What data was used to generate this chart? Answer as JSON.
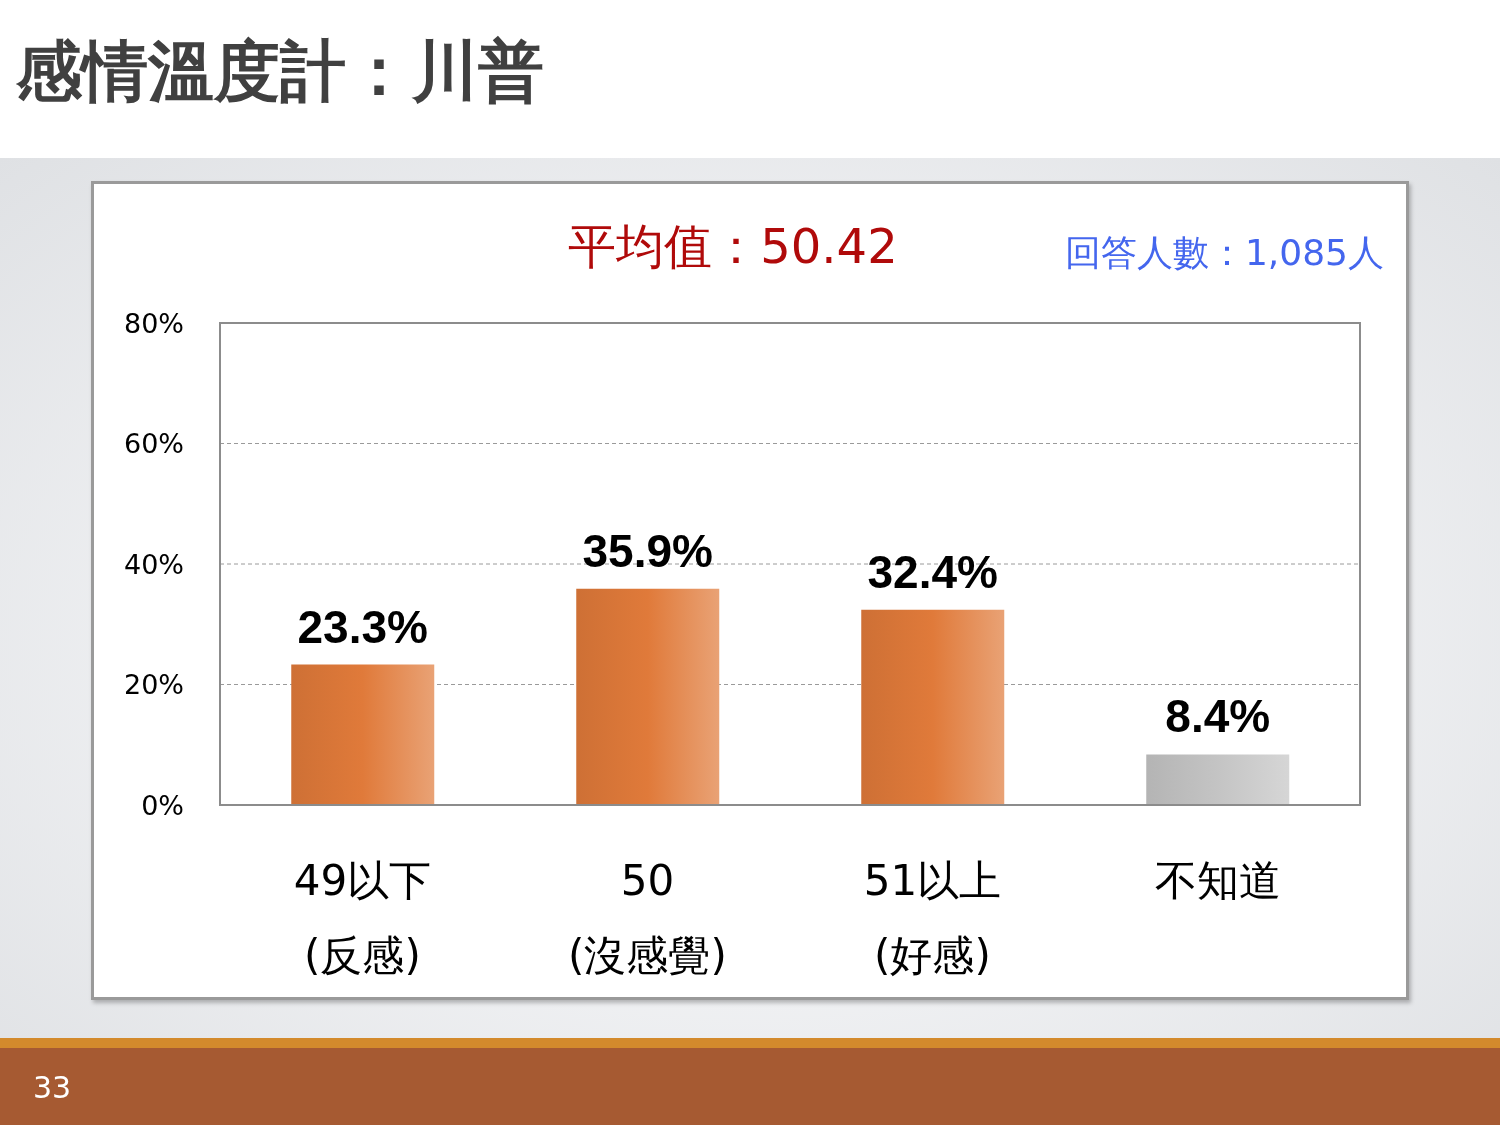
{
  "chart_data": {
    "type": "bar",
    "title": "感情溫度計：川普",
    "annotations": [
      "平均值：50.42",
      "回答人數：1,085人",
      "33"
    ],
    "categories": [
      "49以下\n(反感)",
      "50\n(沒感覺)",
      "51以上\n(好感)",
      "不知道"
    ],
    "values": [
      23.3,
      35.9,
      32.4,
      8.4
    ],
    "colors": [
      "#e07a3a",
      "#e07a3a",
      "#e07a3a",
      "#c4c4c4"
    ],
    "value_labels": [
      "23.3%",
      "35.9%",
      "32.4%",
      "8.4%"
    ],
    "ylim": [
      0,
      80
    ],
    "yticks": [
      {
        "value": 0,
        "label": "0%"
      },
      {
        "value": 20,
        "label": "20%"
      },
      {
        "value": 40,
        "label": "40%"
      },
      {
        "value": 60,
        "label": "60%"
      },
      {
        "value": 80,
        "label": "80%"
      }
    ],
    "grid": "y"
  }
}
